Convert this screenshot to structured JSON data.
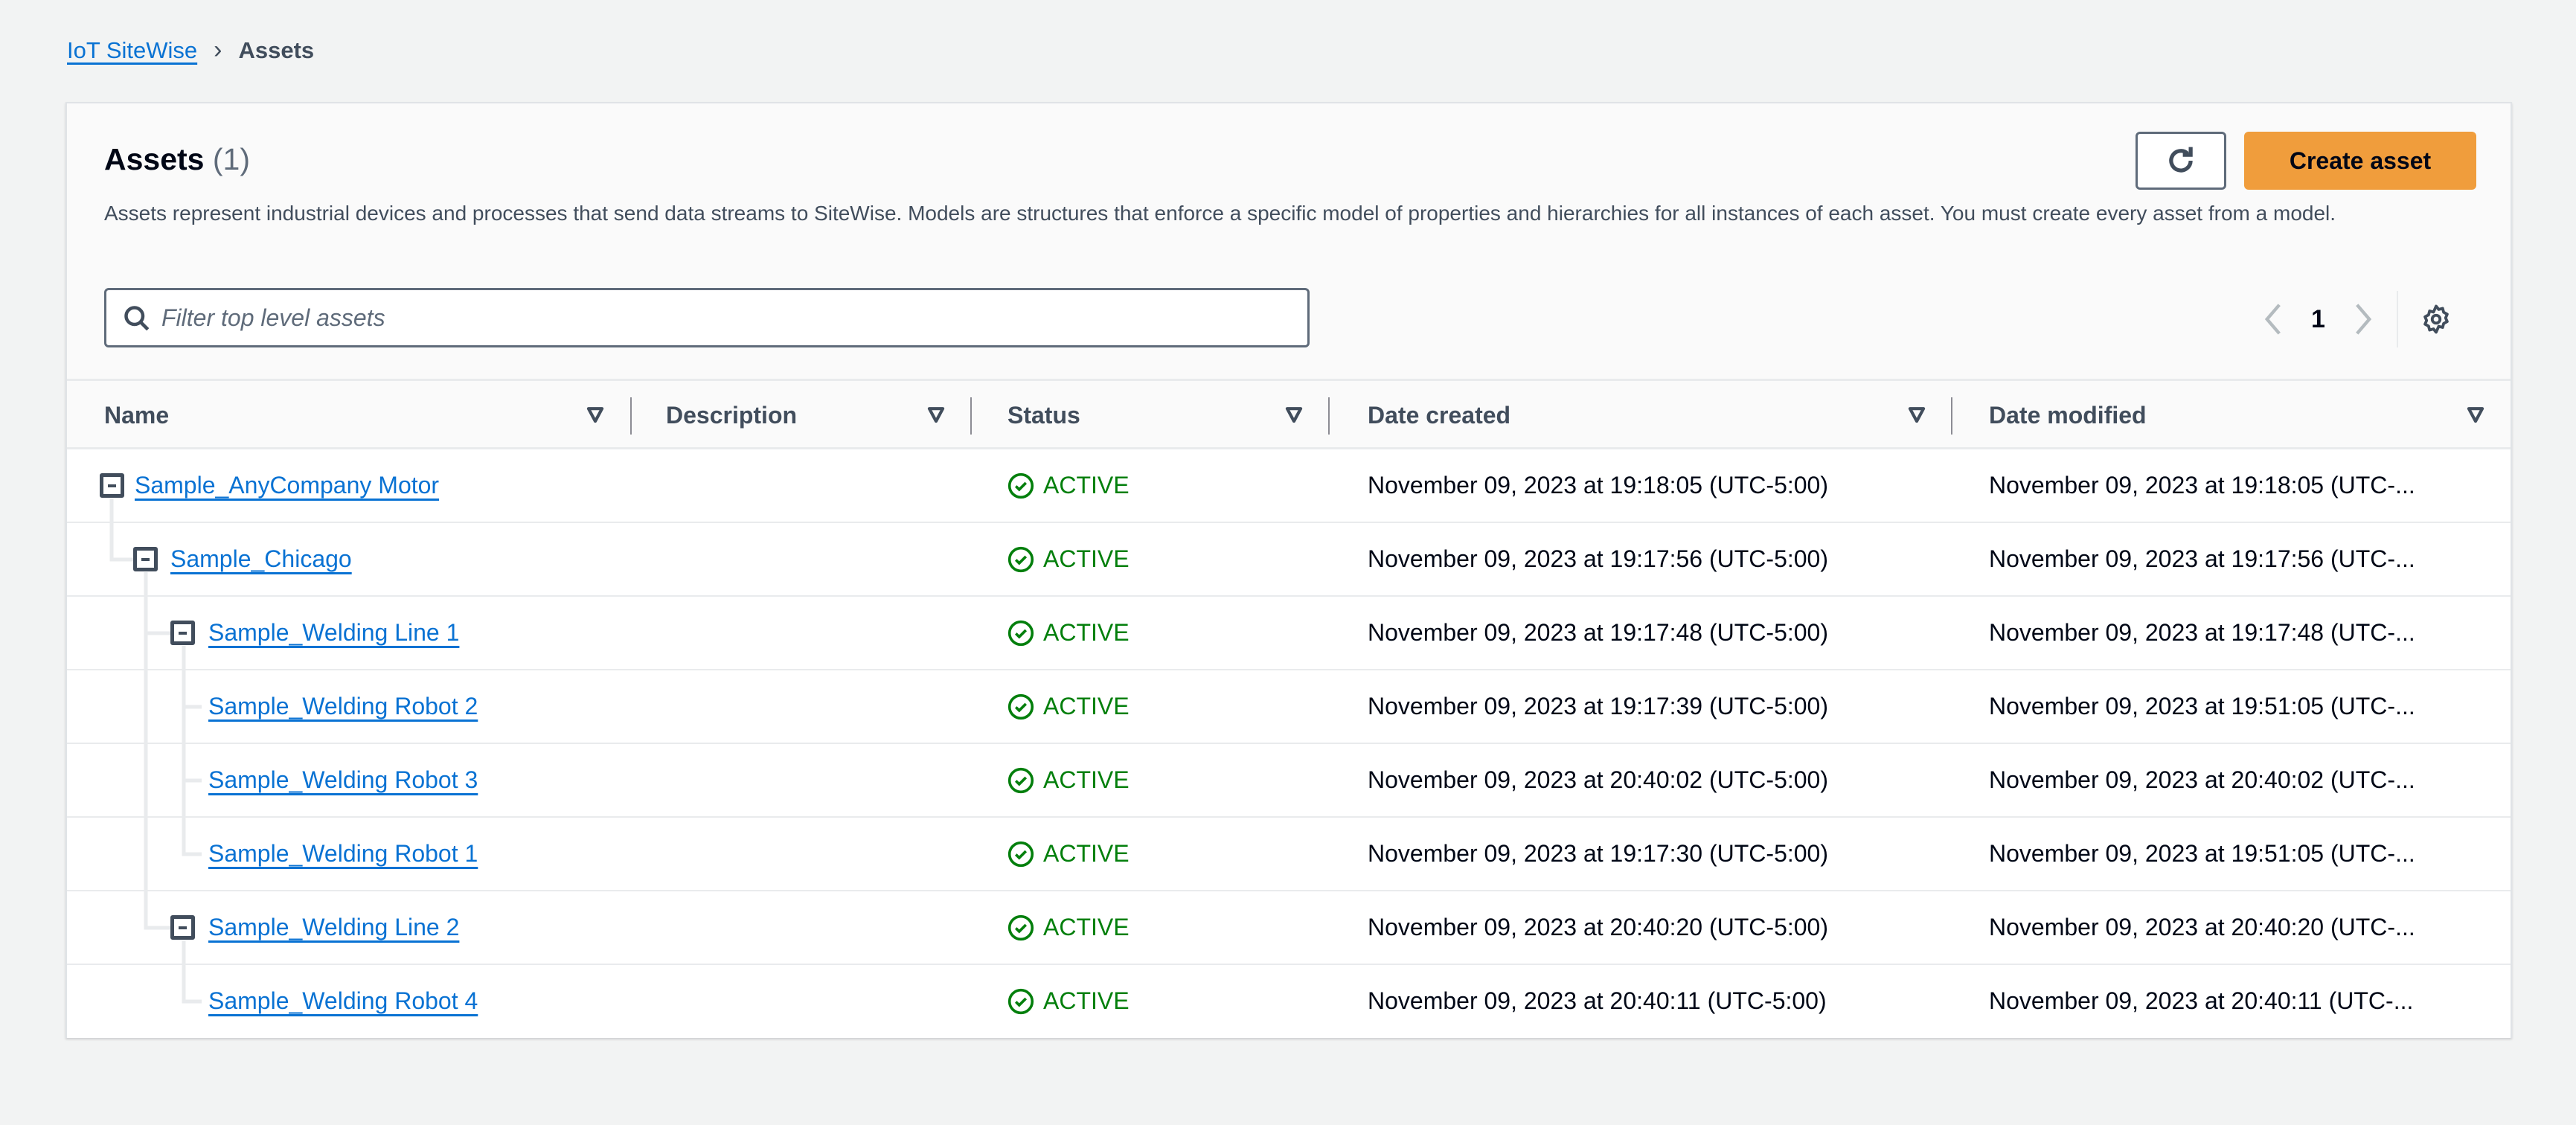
{
  "breadcrumb": {
    "root": "IoT SiteWise",
    "current": "Assets"
  },
  "header": {
    "title": "Assets",
    "count": "(1)",
    "description": "Assets represent industrial devices and processes that send data streams to SiteWise. Models are structures that enforce a specific model of properties and hierarchies for all instances of each asset. You must create every asset from a model.",
    "refresh_icon": "refresh-icon",
    "create_label": "Create asset"
  },
  "search": {
    "placeholder": "Filter top level assets",
    "value": ""
  },
  "pagination": {
    "page": "1"
  },
  "colors": {
    "accent": "#f09d3c",
    "link": "#0972d3",
    "active": "#037f0c"
  },
  "columns": [
    "Name",
    "Description",
    "Status",
    "Date created",
    "Date modified"
  ],
  "rows": [
    {
      "name": "Sample_AnyCompany Motor",
      "level": 0,
      "expanded": true,
      "description": "",
      "status": "ACTIVE",
      "created": "November 09, 2023 at 19:18:05 (UTC-5:00)",
      "modified": "November 09, 2023 at 19:18:05 (UTC-..."
    },
    {
      "name": "Sample_Chicago",
      "level": 1,
      "expanded": true,
      "description": "",
      "status": "ACTIVE",
      "created": "November 09, 2023 at 19:17:56 (UTC-5:00)",
      "modified": "November 09, 2023 at 19:17:56 (UTC-..."
    },
    {
      "name": "Sample_Welding Line 1",
      "level": 2,
      "expanded": true,
      "description": "",
      "status": "ACTIVE",
      "created": "November 09, 2023 at 19:17:48 (UTC-5:00)",
      "modified": "November 09, 2023 at 19:17:48 (UTC-..."
    },
    {
      "name": "Sample_Welding Robot 2",
      "level": 3,
      "expanded": false,
      "description": "",
      "status": "ACTIVE",
      "created": "November 09, 2023 at 19:17:39 (UTC-5:00)",
      "modified": "November 09, 2023 at 19:51:05 (UTC-..."
    },
    {
      "name": "Sample_Welding Robot 3",
      "level": 3,
      "expanded": false,
      "description": "",
      "status": "ACTIVE",
      "created": "November 09, 2023 at 20:40:02 (UTC-5:00)",
      "modified": "November 09, 2023 at 20:40:02 (UTC-..."
    },
    {
      "name": "Sample_Welding Robot 1",
      "level": 3,
      "expanded": false,
      "description": "",
      "status": "ACTIVE",
      "created": "November 09, 2023 at 19:17:30 (UTC-5:00)",
      "modified": "November 09, 2023 at 19:51:05 (UTC-..."
    },
    {
      "name": "Sample_Welding Line 2",
      "level": 2,
      "expanded": true,
      "description": "",
      "status": "ACTIVE",
      "created": "November 09, 2023 at 20:40:20 (UTC-5:00)",
      "modified": "November 09, 2023 at 20:40:20 (UTC-..."
    },
    {
      "name": "Sample_Welding Robot 4",
      "level": 3,
      "expanded": false,
      "description": "",
      "status": "ACTIVE",
      "created": "November 09, 2023 at 20:40:11 (UTC-5:00)",
      "modified": "November 09, 2023 at 20:40:11 (UTC-..."
    }
  ]
}
